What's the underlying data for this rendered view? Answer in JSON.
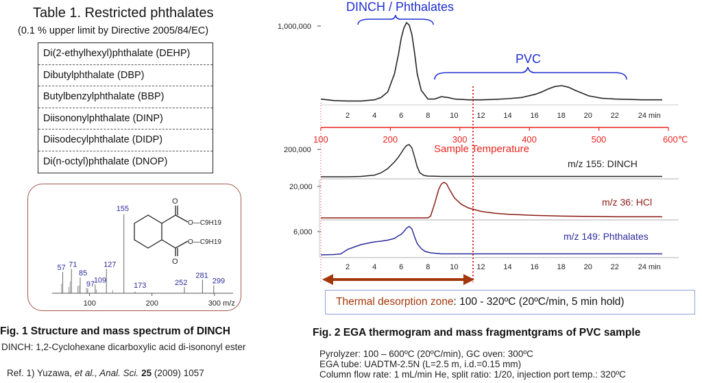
{
  "table": {
    "title": "Table 1. Restricted phthalates",
    "subtitle": "(0.1 % upper limit by Directive 2005/84/EC)",
    "rows": [
      "Di(2-ethylhexyl)phthalate (DEHP)",
      "Dibutylphthalate (DBP)",
      "Butylbenzylphthalate (BBP)",
      "Diisononylphthalate (DINP)",
      "Diisodecylphthalate (DIDP)",
      "Di(n-octyl)phthalate (DNOP)"
    ]
  },
  "fig1": {
    "caption": "Fig. 1 Structure and mass spectrum of DINCH",
    "note": "DINCH: 1,2-Cyclohexane dicarboxylic acid di-isononyl ester",
    "ref_prefix": "Ref. 1) Yuzawa, ",
    "ref_authors": "et al., Anal. Sci.",
    "ref_volume": "25",
    "ref_suffix": " (2009) 1057",
    "substituent": "O—C9H19",
    "oxygen": "O"
  },
  "fig2": {
    "caption": "Fig. 2 EGA thermogram and mass fragmentgrams of PVC sample",
    "conditions": [
      "Pyrolyzer: 100 – 600ºC (20ºC/min), GC oven: 300ºC",
      "EGA tube: UADTM-2.5N (L=2.5 m, i.d.=0.15 mm)",
      "Column flow rate: 1 mL/min He, split ratio: 1/20, injection port temp.: 320ºC"
    ],
    "tdz_label": "Thermal desorption zone",
    "tdz_value": ": 100 - 320ºC (20ºC/min, 5 min hold)",
    "label_dinch_phthalates": "DINCH / Phthalates",
    "label_pvc": "PVC",
    "sample_temperature": "Sample Temperature"
  },
  "colors": {
    "red": "#e8231f",
    "blue": "#1f2fd1",
    "navy": "#2a2a9a",
    "darkred": "#8b1a14",
    "black": "#222222",
    "arrow": "#a3360a",
    "border": "#a0564a"
  },
  "chart_data": [
    {
      "type": "bar",
      "name": "mass spectrum",
      "xlabel": "m/z",
      "xlim": [
        40,
        330
      ],
      "ticks": [
        100,
        200,
        300
      ],
      "tick_labels": [
        "100",
        "200",
        "300 m/z"
      ],
      "labeled_peaks": [
        {
          "mz": 57,
          "intensity": 0.27
        },
        {
          "mz": 71,
          "intensity": 0.31
        },
        {
          "mz": 85,
          "intensity": 0.2
        },
        {
          "mz": 97,
          "intensity": 0.06
        },
        {
          "mz": 109,
          "intensity": 0.11
        },
        {
          "mz": 127,
          "intensity": 0.31
        },
        {
          "mz": 155,
          "intensity": 1.0
        },
        {
          "mz": 173,
          "intensity": 0.02
        },
        {
          "mz": 252,
          "intensity": 0.08
        },
        {
          "mz": 281,
          "intensity": 0.17
        },
        {
          "mz": 299,
          "intensity": 0.1
        }
      ],
      "minor_peaks": [
        {
          "mz": 55,
          "intensity": 0.12
        },
        {
          "mz": 69,
          "intensity": 0.15
        },
        {
          "mz": 67,
          "intensity": 0.08
        },
        {
          "mz": 81,
          "intensity": 0.09
        },
        {
          "mz": 83,
          "intensity": 0.1
        },
        {
          "mz": 95,
          "intensity": 0.07
        },
        {
          "mz": 111,
          "intensity": 0.05
        },
        {
          "mz": 137,
          "intensity": 0.04
        }
      ]
    },
    {
      "type": "line",
      "name": "EGA thermogram",
      "xlabel": "min",
      "xlim": [
        0,
        25.5
      ],
      "ticks": [
        2,
        4,
        6,
        8,
        10,
        12,
        14,
        16,
        18,
        20,
        22,
        24
      ],
      "tick_labels": [
        "2",
        "4",
        "6",
        "8",
        "10",
        "12",
        "14",
        "16",
        "18",
        "20",
        "22",
        "24 min"
      ],
      "ytick": "1,000,000",
      "x": [
        0,
        1,
        2,
        3,
        4,
        4.5,
        5,
        5.5,
        5.8,
        6.0,
        6.2,
        6.4,
        6.6,
        6.8,
        7.0,
        7.2,
        7.5,
        8,
        8.5,
        9,
        9.5,
        10,
        10.5,
        11,
        12,
        13,
        14,
        15,
        16,
        16.5,
        17,
        17.5,
        18,
        18.5,
        19,
        20,
        21,
        22,
        23,
        24,
        25.5
      ],
      "y": [
        0.03,
        0.01,
        0.005,
        0.005,
        0.02,
        0.05,
        0.12,
        0.35,
        0.6,
        0.8,
        0.93,
        1.0,
        0.97,
        0.85,
        0.62,
        0.35,
        0.14,
        0.03,
        0.03,
        0.06,
        0.05,
        0.03,
        0.025,
        0.02,
        0.02,
        0.025,
        0.035,
        0.05,
        0.09,
        0.12,
        0.16,
        0.19,
        0.2,
        0.18,
        0.14,
        0.07,
        0.04,
        0.03,
        0.025,
        0.02,
        0.02
      ]
    },
    {
      "type": "line",
      "name": "sample temperature",
      "xlabel": "°C",
      "ticks": [
        100,
        200,
        300,
        400,
        500,
        600
      ],
      "tick_labels": [
        "100",
        "200",
        "300",
        "400",
        "500",
        "600℃"
      ]
    },
    {
      "type": "line",
      "series": [
        {
          "name": "m/z 155: DINCH",
          "ytick": "200,000",
          "x": [
            0,
            2,
            3,
            4,
            4.5,
            5,
            5.5,
            5.8,
            6.0,
            6.2,
            6.4,
            6.6,
            6.8,
            7.0,
            7.2,
            7.4,
            7.7,
            8,
            9,
            12,
            16,
            20,
            25.5
          ],
          "y": [
            0,
            0,
            0.01,
            0.05,
            0.12,
            0.25,
            0.45,
            0.6,
            0.72,
            0.85,
            0.95,
            0.98,
            0.88,
            0.6,
            0.3,
            0.12,
            0.04,
            0.02,
            0.01,
            0.01,
            0.01,
            0.01,
            0.01
          ]
        },
        {
          "name": "m/z 36: HCl",
          "ytick": "20,000",
          "x": [
            0,
            5,
            7,
            8,
            8.2,
            8.5,
            8.8,
            9.0,
            9.2,
            9.4,
            9.6,
            10,
            10.5,
            11,
            12,
            13,
            14,
            16,
            18,
            20,
            22,
            25.5
          ],
          "y": [
            0,
            0,
            0,
            0,
            0.05,
            0.4,
            0.8,
            0.95,
            1.0,
            0.95,
            0.8,
            0.55,
            0.38,
            0.28,
            0.18,
            0.13,
            0.1,
            0.07,
            0.05,
            0.04,
            0.03,
            0.03
          ]
        },
        {
          "name": "m/z 149: Phthalates",
          "ytick": "6,000",
          "x": [
            0,
            1,
            1.5,
            2,
            2.5,
            3,
            3.5,
            4,
            4.5,
            5,
            5.5,
            5.8,
            6.0,
            6.2,
            6.4,
            6.6,
            6.8,
            7.0,
            7.2,
            7.5,
            7.8,
            8.2,
            9,
            10,
            12,
            14,
            16,
            18,
            20,
            22,
            25.5
          ],
          "y": [
            0.02,
            0.03,
            0.05,
            0.18,
            0.25,
            0.32,
            0.36,
            0.4,
            0.42,
            0.45,
            0.5,
            0.58,
            0.62,
            0.7,
            0.8,
            0.85,
            0.78,
            0.55,
            0.35,
            0.2,
            0.12,
            0.08,
            0.05,
            0.05,
            0.05,
            0.05,
            0.05,
            0.05,
            0.05,
            0.05,
            0.05
          ]
        }
      ]
    }
  ]
}
